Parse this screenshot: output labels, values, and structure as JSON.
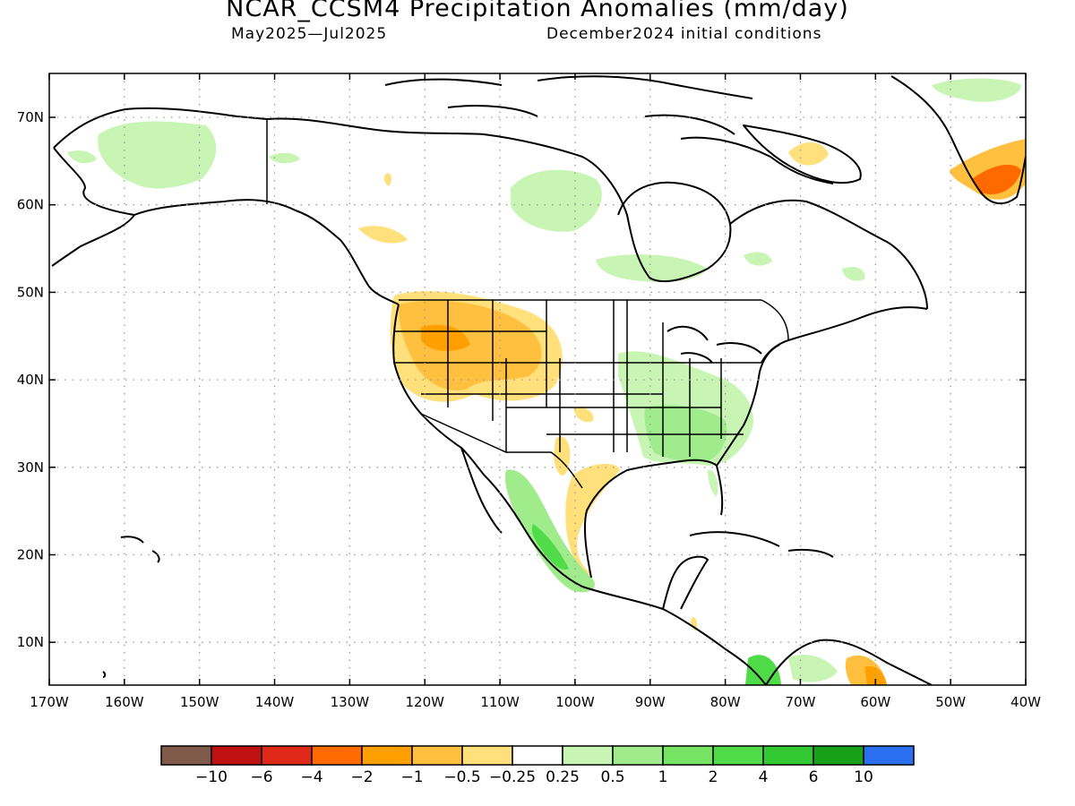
{
  "title": "NCAR_CCSM4 Precipitation Anomalies (mm/day)",
  "subtitle_left": "May2025—Jul2025",
  "subtitle_right": "December2024 initial conditions",
  "lat_labels": [
    {
      "v": 70,
      "text": "70N"
    },
    {
      "v": 60,
      "text": "60N"
    },
    {
      "v": 50,
      "text": "50N"
    },
    {
      "v": 40,
      "text": "40N"
    },
    {
      "v": 30,
      "text": "30N"
    },
    {
      "v": 20,
      "text": "20N"
    },
    {
      "v": 10,
      "text": "10N"
    }
  ],
  "lon_labels": [
    {
      "v": -170,
      "text": "170W"
    },
    {
      "v": -160,
      "text": "160W"
    },
    {
      "v": -150,
      "text": "150W"
    },
    {
      "v": -140,
      "text": "140W"
    },
    {
      "v": -130,
      "text": "130W"
    },
    {
      "v": -120,
      "text": "120W"
    },
    {
      "v": -110,
      "text": "110W"
    },
    {
      "v": -100,
      "text": "100W"
    },
    {
      "v": -90,
      "text": "90W"
    },
    {
      "v": -80,
      "text": "80W"
    },
    {
      "v": -70,
      "text": "70W"
    },
    {
      "v": -60,
      "text": "60W"
    },
    {
      "v": -50,
      "text": "50W"
    },
    {
      "v": -40,
      "text": "40W"
    }
  ],
  "colorbar": {
    "colors": [
      "#7f5a4a",
      "#c01010",
      "#e02818",
      "#ff6a00",
      "#ffa000",
      "#ffc040",
      "#ffe07a",
      "#ffffff",
      "#c8f5b4",
      "#a0eb8c",
      "#78e464",
      "#50dc48",
      "#32c832",
      "#18a018",
      "#2a6ff0"
    ],
    "labels": [
      "−10",
      "−6",
      "−4",
      "−2",
      "−1",
      "−0.5",
      "−0.25",
      "0.25",
      "0.5",
      "1",
      "2",
      "4",
      "6",
      "10"
    ]
  },
  "colors": {
    "dry_light": "#ffe07a",
    "dry_med": "#ffc040",
    "dry_strong": "#ffa000",
    "dry_vstrong": "#ff6a00",
    "wet_light": "#c8f5b4",
    "wet_med": "#a0eb8c",
    "wet_strong": "#50dc48"
  }
}
